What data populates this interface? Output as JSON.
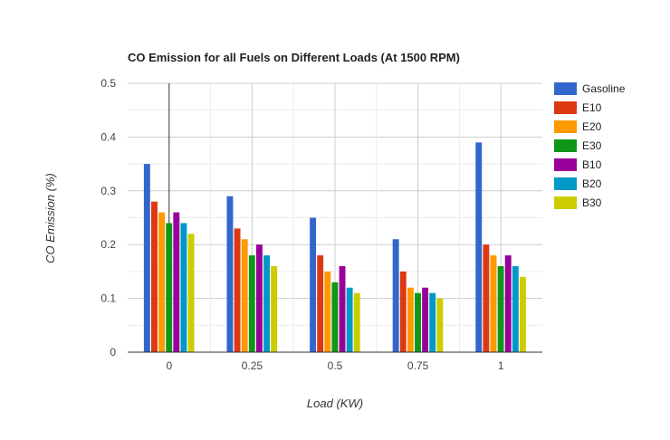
{
  "chart_data": {
    "type": "bar",
    "title": "CO Emission for all Fuels on Different Loads (At 1500 RPM)",
    "xlabel": "Load (KW)",
    "ylabel": "CO Emission (%)",
    "categories": [
      "0",
      "0.25",
      "0.5",
      "0.75",
      "1"
    ],
    "ylim": [
      0,
      0.5
    ],
    "yticks": [
      "0",
      "0.1",
      "0.2",
      "0.3",
      "0.4",
      "0.5"
    ],
    "grid": true,
    "legend_position": "right",
    "series": [
      {
        "name": "Gasoline",
        "color": "#3366cc",
        "values": [
          0.35,
          0.29,
          0.25,
          0.21,
          0.39
        ]
      },
      {
        "name": "E10",
        "color": "#dc3912",
        "values": [
          0.28,
          0.23,
          0.18,
          0.15,
          0.2
        ]
      },
      {
        "name": "E20",
        "color": "#ff9900",
        "values": [
          0.26,
          0.21,
          0.15,
          0.12,
          0.18
        ]
      },
      {
        "name": "E30",
        "color": "#109618",
        "values": [
          0.24,
          0.18,
          0.13,
          0.11,
          0.16
        ]
      },
      {
        "name": "B10",
        "color": "#990099",
        "values": [
          0.26,
          0.2,
          0.16,
          0.12,
          0.18
        ]
      },
      {
        "name": "B20",
        "color": "#0099c6",
        "values": [
          0.24,
          0.18,
          0.12,
          0.11,
          0.16
        ]
      },
      {
        "name": "B30",
        "color": "#cccc00",
        "values": [
          0.22,
          0.16,
          0.11,
          0.1,
          0.14
        ]
      }
    ]
  }
}
